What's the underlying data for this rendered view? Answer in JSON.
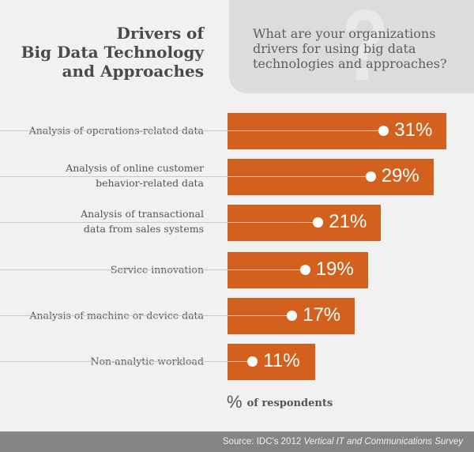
{
  "title_lines": [
    "Drivers of",
    "Big Data Technology",
    "and Approaches"
  ],
  "question_lines": [
    "What are your organizations",
    "drivers for using big data",
    "technologies and approaches?"
  ],
  "question_mark": "?",
  "legend": {
    "symbol": "%",
    "text": "of respondents"
  },
  "footer": {
    "prefix": "Source: IDC's 2012 ",
    "italic": "Vertical IT and Communications Survey"
  },
  "colors": {
    "bar": "#d4601e",
    "background": "#f1f1f1",
    "footer": "#858585"
  },
  "chart_data": {
    "type": "bar",
    "orientation": "horizontal",
    "title": "Drivers of Big Data Technology and Approaches",
    "xlabel": "% of respondents",
    "categories": [
      [
        "Analysis of operations-related data"
      ],
      [
        "Analysis of online customer",
        "behavior-related data"
      ],
      [
        "Analysis of transactional",
        "data from sales systems"
      ],
      [
        "Service innovation"
      ],
      [
        "Analysis of machine or device data"
      ],
      [
        "Non-analytic workload"
      ]
    ],
    "values": [
      31,
      29,
      21,
      19,
      17,
      11
    ],
    "value_labels": [
      "31%",
      "29%",
      "21%",
      "19%",
      "17%",
      "11%"
    ]
  }
}
